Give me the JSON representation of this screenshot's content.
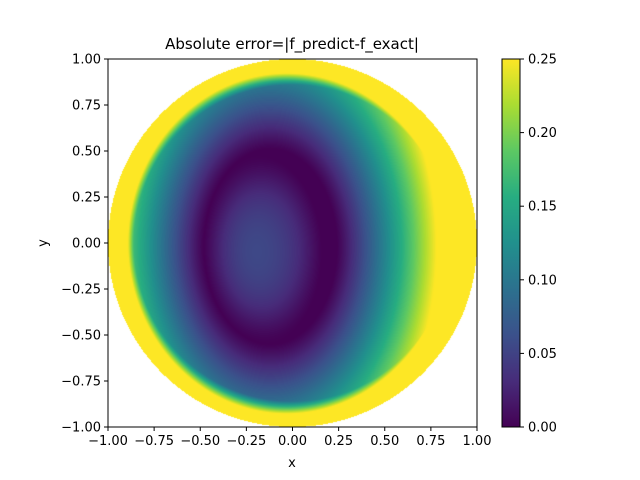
{
  "chart_data": {
    "type": "heatmap",
    "title": "Absolute error=|f_predict-f_exact|",
    "xlabel": "x",
    "ylabel": "y",
    "xlim": [
      -1.0,
      1.0
    ],
    "ylim": [
      -1.0,
      1.0
    ],
    "x_ticks": [
      "−1.00",
      "−0.75",
      "−0.50",
      "−0.25",
      "0.00",
      "0.25",
      "0.50",
      "0.75",
      "1.00"
    ],
    "y_ticks": [
      "−1.00",
      "−0.75",
      "−0.50",
      "−0.25",
      "0.00",
      "0.25",
      "0.50",
      "0.75",
      "1.00"
    ],
    "domain": "unit disk x^2 + y^2 <= 1",
    "colormap": "viridis",
    "color_range": [
      0.0,
      0.25
    ],
    "colorbar_ticks": [
      "0.00",
      "0.05",
      "0.10",
      "0.15",
      "0.20",
      "0.25"
    ],
    "grid": false,
    "colorbar_placement": "right",
    "minimum_error_center": {
      "x": -0.2,
      "y": -0.05
    },
    "zero_error_contour_center": {
      "x": -0.12,
      "y": -0.02
    },
    "zero_error_contour_radii": {
      "x": 0.36,
      "y": 0.53
    },
    "saturated_region": "outer ring near the boundary, values >= 0.25"
  }
}
